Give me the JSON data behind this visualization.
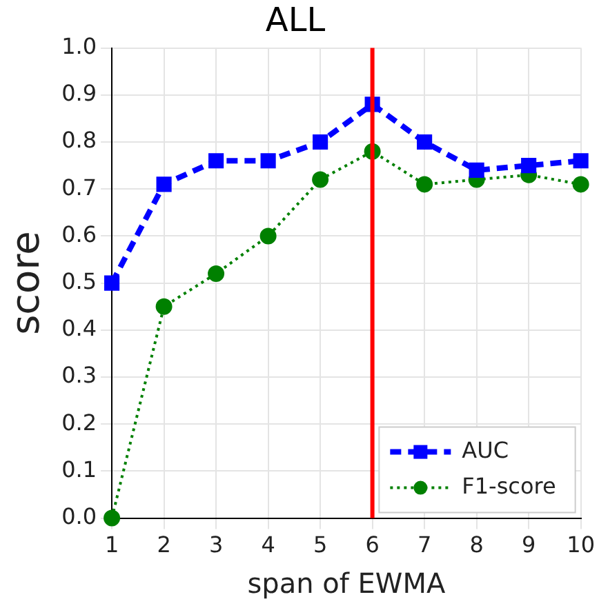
{
  "chart_data": {
    "type": "line",
    "title": "ALL",
    "xlabel": "span of EWMA",
    "ylabel": "score",
    "x": [
      1,
      2,
      3,
      4,
      5,
      6,
      7,
      8,
      9,
      10
    ],
    "series": [
      {
        "name": "AUC",
        "color": "#0000ff",
        "marker": "square",
        "line_style": "dashed",
        "values": [
          0.5,
          0.71,
          0.76,
          0.76,
          0.8,
          0.88,
          0.8,
          0.74,
          0.75,
          0.76
        ]
      },
      {
        "name": "F1-score",
        "color": "#008000",
        "marker": "circle",
        "line_style": "dotted",
        "values": [
          0.0,
          0.45,
          0.52,
          0.6,
          0.72,
          0.78,
          0.71,
          0.72,
          0.73,
          0.71
        ]
      }
    ],
    "xlim": [
      1,
      10
    ],
    "xticks": [
      1,
      2,
      3,
      4,
      5,
      6,
      7,
      8,
      9,
      10
    ],
    "ylim": [
      0,
      1
    ],
    "yticks": [
      {
        "value": 0,
        "label": "0.0"
      },
      {
        "value": 0.1,
        "label": "0.1"
      },
      {
        "value": 0.2,
        "label": "0.2"
      },
      {
        "value": 0.3,
        "label": "0.3"
      },
      {
        "value": 0.4,
        "label": "0.4"
      },
      {
        "value": 0.5,
        "label": "0.5"
      },
      {
        "value": 0.6,
        "label": "0.6"
      },
      {
        "value": 0.7,
        "label": "0.7"
      },
      {
        "value": 0.8,
        "label": "0.8"
      },
      {
        "value": 0.9,
        "label": "0.9"
      },
      {
        "value": 1,
        "label": "1.0"
      }
    ],
    "ref_lines": [
      {
        "axis": "x",
        "value": 6,
        "color": "#ff0000"
      }
    ],
    "grid": true,
    "legend": "bottom right"
  }
}
